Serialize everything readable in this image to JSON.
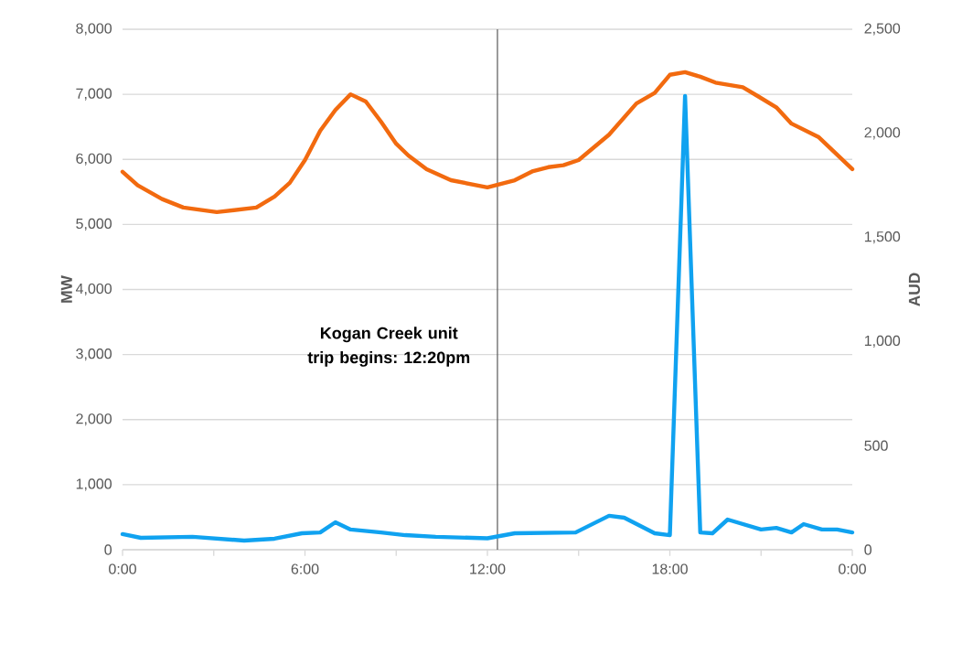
{
  "chart_data": {
    "type": "line",
    "ylabel": "MW",
    "y2label": "AUD",
    "xlim": [
      0,
      24
    ],
    "xticks": [
      {
        "value": 0,
        "label": "0:00"
      },
      {
        "value": 3,
        "label": null
      },
      {
        "value": 6,
        "label": "6:00"
      },
      {
        "value": 9,
        "label": null
      },
      {
        "value": 12,
        "label": "12:00"
      },
      {
        "value": 15,
        "label": null
      },
      {
        "value": 18,
        "label": "18:00"
      },
      {
        "value": 21,
        "label": null
      },
      {
        "value": 24,
        "label": "0:00"
      }
    ],
    "ylim": [
      0,
      8000
    ],
    "yticks": [
      0,
      {
        "value": 1000,
        "label": "1,000"
      },
      {
        "value": 2000,
        "label": "2,000"
      },
      {
        "value": 3000,
        "label": "3,000"
      },
      {
        "value": 4000,
        "label": "4,000"
      },
      {
        "value": 5000,
        "label": "5,000"
      },
      {
        "value": 6000,
        "label": "6,000"
      },
      {
        "value": 7000,
        "label": "7,000"
      },
      {
        "value": 8000,
        "label": "8,000"
      }
    ],
    "y2lim": [
      0,
      2500
    ],
    "y2ticks": [
      0,
      500,
      {
        "value": 1000,
        "label": "1,000"
      },
      {
        "value": 1500,
        "label": "1,500"
      },
      {
        "value": 2000,
        "label": "2,000"
      },
      {
        "value": 2500,
        "label": "2,500"
      }
    ],
    "grid": "y",
    "marker": "none",
    "line_style": "solid",
    "ref_lines": [
      {
        "axis": "x",
        "value": 12.33,
        "label": "Kogan Creek unit trip begins: 12:20pm",
        "color": "#595959"
      }
    ],
    "series": [
      {
        "color": "#f26a0f",
        "x": [
          0,
          0.5,
          1.3,
          2,
          3.1,
          4.4,
          5,
          5.5,
          6,
          6.5,
          7,
          7.5,
          8,
          8.5,
          9,
          9.4,
          10,
          10.8,
          12,
          12.9,
          13.5,
          14,
          14.5,
          15,
          16,
          16.9,
          17.5,
          18,
          18.5,
          19,
          19.5,
          20.4,
          20.9,
          21.5,
          22,
          22.9,
          24
        ],
        "values": [
          5810,
          5600,
          5390,
          5260,
          5190,
          5260,
          5430,
          5640,
          5990,
          6440,
          6760,
          7000,
          6890,
          6580,
          6240,
          6060,
          5850,
          5680,
          5570,
          5680,
          5820,
          5880,
          5910,
          5990,
          6380,
          6860,
          7020,
          7300,
          7340,
          7270,
          7180,
          7110,
          6970,
          6800,
          6550,
          6340,
          5850
        ]
      },
      {
        "color": "#10a2f0",
        "axis": "y2",
        "x": [
          0,
          0.6,
          2.3,
          4,
          5,
          5.9,
          6.5,
          7,
          7.5,
          8.5,
          9.3,
          10.3,
          12,
          12.9,
          14.9,
          16,
          16.5,
          17.5,
          18,
          18.5,
          19,
          19.4,
          19.9,
          21,
          21.5,
          22,
          22.4,
          23,
          23.5,
          24
        ],
        "values": [
          75,
          57,
          62,
          44,
          53,
          79,
          83,
          132,
          97,
          83,
          70,
          62,
          55,
          79,
          83,
          163,
          154,
          79,
          70,
          2180,
          83,
          79,
          145,
          97,
          105,
          83,
          123,
          97,
          97,
          83
        ]
      }
    ]
  }
}
